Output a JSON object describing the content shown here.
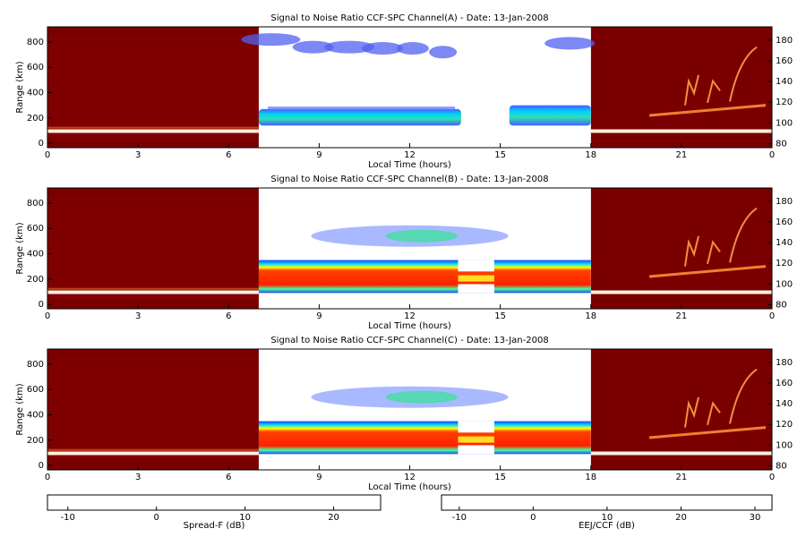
{
  "chart_data": [
    {
      "type": "heatmap",
      "title": "Signal to Noise Ratio CCF-SPC Channel(A) - Date: 13-Jan-2008",
      "xlabel": "Local Time (hours)",
      "ylabel": "Range (km)",
      "xlim": [
        0,
        24
      ],
      "xticks": [
        0,
        3,
        6,
        9,
        12,
        15,
        18,
        21,
        {
          "value": 24,
          "label": "0"
        }
      ],
      "ylim": [
        -35,
        920
      ],
      "yticks": [
        0,
        200,
        400,
        600,
        800
      ],
      "y2lim": [
        76,
        193
      ],
      "y2ticks": [
        80,
        100,
        120,
        140,
        160,
        180
      ]
    },
    {
      "type": "heatmap",
      "title": "Signal to Noise Ratio CCF-SPC Channel(B) - Date: 13-Jan-2008",
      "xlabel": "Local Time (hours)",
      "ylabel": "Range (km)",
      "xlim": [
        0,
        24
      ],
      "xticks": [
        0,
        3,
        6,
        9,
        12,
        15,
        18,
        21,
        {
          "value": 24,
          "label": "0"
        }
      ],
      "ylim": [
        -35,
        920
      ],
      "yticks": [
        0,
        200,
        400,
        600,
        800
      ],
      "y2lim": [
        76,
        193
      ],
      "y2ticks": [
        80,
        100,
        120,
        140,
        160,
        180
      ]
    },
    {
      "type": "heatmap",
      "title": "Signal to Noise Ratio CCF-SPC Channel(C) - Date: 13-Jan-2008",
      "xlabel": "Local Time (hours)",
      "ylabel": "Range (km)",
      "xlim": [
        0,
        24
      ],
      "xticks": [
        0,
        3,
        6,
        9,
        12,
        15,
        18,
        21,
        {
          "value": 24,
          "label": "0"
        }
      ],
      "ylim": [
        -35,
        920
      ],
      "yticks": [
        0,
        200,
        400,
        600,
        800
      ],
      "y2lim": [
        76,
        193
      ],
      "y2ticks": [
        80,
        100,
        120,
        140,
        160,
        180
      ]
    },
    {
      "type": "colorbar",
      "xlabel": "Spread-F (dB)",
      "xlim": [
        -12.3,
        25.3
      ],
      "xticks": [
        -10,
        0,
        10,
        20
      ],
      "colors": [
        "#6e0000",
        "#a01000",
        "#d84000",
        "#f07020",
        "#f8b070",
        "#fff8f0"
      ]
    },
    {
      "type": "colorbar",
      "xlabel": "EEJ/CCF (dB)",
      "xlim": [
        -12.4,
        32.3
      ],
      "xticks": [
        -10,
        0,
        10,
        20,
        30
      ],
      "colors": [
        "#ffffff",
        "#4040ff",
        "#00c0ff",
        "#40ff80",
        "#ffff00",
        "#ff8000",
        "#ff0000"
      ]
    }
  ]
}
